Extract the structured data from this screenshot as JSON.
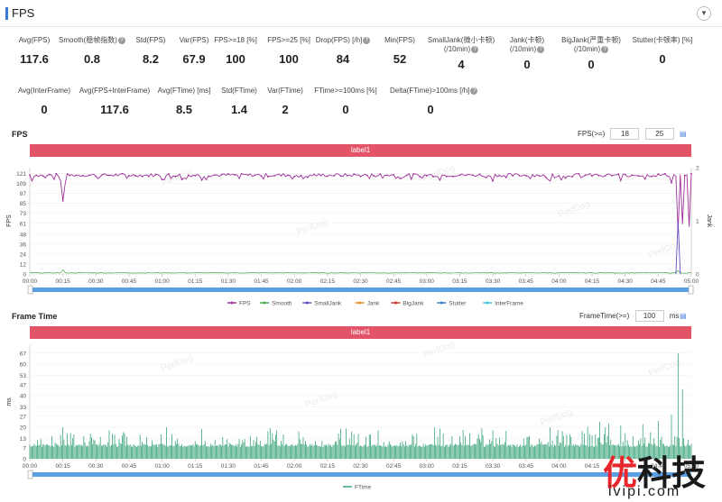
{
  "header": {
    "title": "FPS",
    "collapse_icon": "chevron-down-icon"
  },
  "metrics_row1": [
    {
      "label": "Avg(FPS)",
      "value": "117.6",
      "help": false
    },
    {
      "label": "Smooth(稳帧指数)",
      "value": "0.8",
      "help": true
    },
    {
      "label": "Std(FPS)",
      "value": "8.2",
      "help": false
    },
    {
      "label": "Var(FPS)",
      "value": "67.9",
      "help": false
    },
    {
      "label": "FPS>=18 [%]",
      "value": "100",
      "help": false
    },
    {
      "label": "FPS>=25 [%]",
      "value": "100",
      "help": false
    },
    {
      "label": "Drop(FPS) [/h]",
      "value": "84",
      "help": true
    },
    {
      "label": "Min(FPS)",
      "value": "52",
      "help": false
    },
    {
      "label": "SmallJank(微小卡顿)",
      "label2": "(/10min)",
      "value": "4",
      "help": true
    },
    {
      "label": "Jank(卡顿)",
      "label2": "(/10min)",
      "value": "0",
      "help": true
    },
    {
      "label": "BigJank(严重卡顿)",
      "label2": "(/10min)",
      "value": "0",
      "help": true
    },
    {
      "label": "Stutter(卡顿率) [%]",
      "value": "0",
      "help": false
    }
  ],
  "metrics_row2": [
    {
      "label": "Avg(InterFrame)",
      "value": "0",
      "help": false
    },
    {
      "label": "Avg(FPS+InterFrame)",
      "value": "117.6",
      "help": false
    },
    {
      "label": "Avg(FTime) [ms]",
      "value": "8.5",
      "help": false
    },
    {
      "label": "Std(FTime)",
      "value": "1.4",
      "help": false
    },
    {
      "label": "Var(FTime)",
      "value": "2",
      "help": false
    },
    {
      "label": "FTime>=100ms [%]",
      "value": "0",
      "help": false
    },
    {
      "label": "Delta(FTime)>100ms [/h]",
      "value": "0",
      "help": true
    }
  ],
  "fps_section": {
    "title": "FPS",
    "threshold_label": "FPS(>=)",
    "threshold_1": "18",
    "threshold_2": "25",
    "label_bar": "label1",
    "watermark": "PerfDog",
    "icon": "table-icon"
  },
  "ftime_section": {
    "title": "Frame Time",
    "threshold_label": "FrameTime(>=)",
    "threshold_value": "100",
    "unit": "ms",
    "label_bar": "label1",
    "icon": "table-icon"
  },
  "time_ticks": [
    "00:00",
    "00:15",
    "00:30",
    "00:45",
    "01:00",
    "01:15",
    "01:30",
    "01:45",
    "02:00",
    "02:15",
    "02:30",
    "02:45",
    "03:00",
    "03:15",
    "03:30",
    "03:45",
    "04:00",
    "04:15",
    "04:30",
    "04:45",
    "05:00"
  ],
  "chart_data": [
    {
      "type": "line",
      "title": "FPS",
      "ylabel": "FPS",
      "y2label": "Jank",
      "y_ticks": [
        0,
        12,
        24,
        36,
        48,
        61,
        73,
        85,
        97,
        109,
        121
      ],
      "y2_ticks": [
        0,
        1,
        2
      ],
      "ylim": [
        0,
        128
      ],
      "y2lim": [
        0,
        2
      ],
      "xlim_seconds": [
        0,
        300
      ],
      "legend": [
        "FPS",
        "Smooth",
        "SmallJank",
        "Jank",
        "BigJank",
        "Stutter",
        "InterFrame"
      ],
      "legend_position": "bottom",
      "series_colors": {
        "FPS": "#a0329c",
        "Smooth": "#4caf50",
        "SmallJank": "#6a4bc4",
        "Jank": "#f08a24",
        "BigJank": "#d9322e",
        "Stutter": "#3a7bd5",
        "InterFrame": "#42c8e0"
      },
      "fps_baseline": 119,
      "fps_dips": [
        {
          "t": 1,
          "v": 112
        },
        {
          "t": 14,
          "v": 112
        },
        {
          "t": 15,
          "v": 88
        },
        {
          "t": 16,
          "v": 108
        },
        {
          "t": 78,
          "v": 113
        },
        {
          "t": 186,
          "v": 113
        },
        {
          "t": 210,
          "v": 112
        },
        {
          "t": 236,
          "v": 112
        },
        {
          "t": 268,
          "v": 112
        },
        {
          "t": 291,
          "v": 110
        },
        {
          "t": 294,
          "v": 52
        },
        {
          "t": 296,
          "v": 60
        },
        {
          "t": 299,
          "v": 57
        }
      ],
      "smalljank_events": [
        {
          "t": 294,
          "v": 1
        }
      ],
      "smooth_spikes": [
        {
          "t": 15,
          "v": 5
        },
        {
          "t": 294,
          "v": 4
        }
      ]
    },
    {
      "type": "bar",
      "title": "Frame Time",
      "ylabel": "ms",
      "y_ticks": [
        0,
        7,
        13,
        20,
        27,
        33,
        40,
        47,
        53,
        60,
        67
      ],
      "ylim": [
        0,
        72
      ],
      "xlim_seconds": [
        0,
        300
      ],
      "legend": [
        "FTime"
      ],
      "legend_position": "bottom",
      "series_colors": {
        "FTime": "#3aa57a"
      },
      "baseline_ms": 8.5,
      "peaks": [
        {
          "t": 15,
          "v": 20
        },
        {
          "t": 36,
          "v": 18
        },
        {
          "t": 62,
          "v": 20
        },
        {
          "t": 78,
          "v": 19
        },
        {
          "t": 112,
          "v": 18
        },
        {
          "t": 141,
          "v": 19
        },
        {
          "t": 186,
          "v": 19
        },
        {
          "t": 210,
          "v": 18
        },
        {
          "t": 236,
          "v": 20
        },
        {
          "t": 261,
          "v": 20
        },
        {
          "t": 268,
          "v": 21
        },
        {
          "t": 285,
          "v": 24
        },
        {
          "t": 291,
          "v": 28
        },
        {
          "t": 294,
          "v": 67
        },
        {
          "t": 296,
          "v": 44
        }
      ]
    }
  ],
  "logo": {
    "chars": [
      "优",
      "科技"
    ],
    "url": "ivipi.com"
  }
}
